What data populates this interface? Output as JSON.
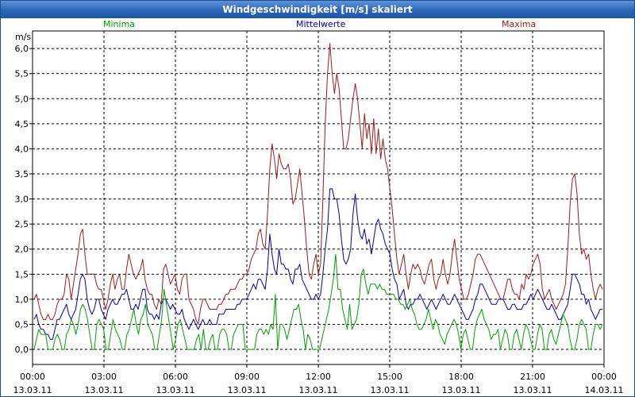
{
  "window": {
    "title": "Windgeschwindigkeit [m/s] skaliert"
  },
  "chart_data": {
    "type": "line",
    "title": "Windgeschwindigkeit [m/s] skaliert",
    "ylabel": "m/s",
    "ylim": [
      -0.3,
      6.35
    ],
    "xlim_hours": [
      0,
      72
    ],
    "grid": true,
    "y_ticks": [
      "0,0",
      "0,5",
      "1,0",
      "1,5",
      "2,0",
      "2,5",
      "3,0",
      "3,5",
      "4,0",
      "4,5",
      "5,0",
      "5,5",
      "6,0"
    ],
    "x_ticks": [
      {
        "time": "00:00",
        "date": "13.03.11"
      },
      {
        "time": "03:00",
        "date": "13.03.11"
      },
      {
        "time": "06:00",
        "date": "13.03.11"
      },
      {
        "time": "09:00",
        "date": "13.03.11"
      },
      {
        "time": "12:00",
        "date": "13.03.11"
      },
      {
        "time": "15:00",
        "date": "13.03.11"
      },
      {
        "time": "18:00",
        "date": "13.03.11"
      },
      {
        "time": "21:00",
        "date": "13.03.11"
      },
      {
        "time": "00:00",
        "date": "14.03.11"
      }
    ],
    "series": [
      {
        "name": "Maxima",
        "color": "#9b1b1b",
        "values": [
          1.0,
          1.1,
          0.9,
          0.7,
          0.6,
          0.6,
          0.7,
          0.6,
          0.6,
          0.7,
          0.9,
          1.0,
          1.0,
          1.1,
          1.5,
          1.4,
          1.0,
          1.3,
          1.6,
          1.9,
          2.3,
          2.4,
          1.9,
          1.5,
          1.5,
          1.5,
          1.5,
          1.3,
          1.2,
          1.2,
          1.0,
          0.8,
          1.0,
          1.3,
          1.5,
          1.2,
          1.4,
          1.5,
          1.2,
          1.2,
          1.6,
          1.9,
          1.7,
          1.5,
          1.4,
          1.5,
          1.6,
          1.8,
          1.4,
          1.2,
          1.1,
          1.1,
          0.9,
          0.8,
          1.0,
          0.9,
          1.6,
          1.7,
          1.5,
          1.3,
          1.4,
          1.5,
          1.2,
          1.1,
          1.4,
          1.5,
          1.5,
          1.0,
          0.9,
          0.8,
          0.6,
          0.5,
          0.8,
          1.0,
          1.0,
          0.9,
          0.8,
          0.8,
          0.8,
          0.8,
          0.9,
          0.9,
          1.0,
          1.1,
          1.1,
          1.2,
          1.2,
          1.2,
          1.3,
          1.4,
          1.4,
          1.5,
          1.5,
          1.6,
          1.8,
          1.9,
          2.0,
          2.3,
          2.4,
          2.1,
          2.0,
          2.7,
          3.6,
          4.1,
          3.8,
          3.4,
          3.9,
          3.7,
          3.6,
          3.6,
          3.7,
          3.4,
          2.9,
          3.0,
          3.3,
          3.6,
          3.1,
          2.6,
          2.0,
          1.5,
          1.4,
          1.7,
          1.9,
          1.5,
          1.7,
          3.0,
          4.5,
          5.5,
          6.1,
          5.5,
          5.1,
          5.5,
          5.2,
          4.6,
          4.0,
          4.0,
          4.2,
          4.6,
          5.0,
          5.3,
          5.0,
          4.5,
          4.0,
          4.7,
          4.2,
          4.5,
          3.9,
          4.6,
          3.9,
          4.4,
          3.8,
          4.2,
          3.8,
          3.6,
          3.2,
          2.8,
          2.3,
          1.8,
          1.5,
          1.7,
          1.9,
          1.5,
          1.2,
          1.5,
          1.7,
          1.6,
          1.7,
          1.6,
          1.4,
          1.3,
          1.5,
          1.7,
          1.8,
          1.4,
          1.2,
          1.4,
          1.5,
          1.8,
          1.5,
          1.3,
          1.5,
          1.9,
          2.2,
          1.8,
          1.4,
          1.2,
          1.0,
          1.0,
          1.1,
          1.3,
          1.5,
          1.8,
          1.9,
          1.9,
          1.8,
          1.7,
          1.6,
          1.5,
          1.4,
          1.3,
          1.2,
          1.1,
          1.0,
          1.0,
          1.2,
          1.4,
          1.4,
          1.2,
          1.1,
          1.1,
          1.0,
          1.3,
          1.2,
          1.5,
          1.4,
          1.5,
          1.7,
          1.8,
          1.9,
          1.7,
          1.2,
          1.0,
          1.1,
          1.2,
          1.0,
          0.9,
          0.8,
          0.9,
          1.0,
          1.1,
          1.3,
          2.0,
          2.9,
          3.4,
          3.5,
          3.1,
          2.3,
          1.9,
          2.0,
          1.8,
          1.9,
          1.5,
          1.2,
          1.0,
          1.2,
          1.3,
          1.2
        ]
      },
      {
        "name": "Mittelwerte",
        "color": "#00009c",
        "values": [
          0.6,
          0.7,
          0.5,
          0.4,
          0.4,
          0.3,
          0.3,
          0.2,
          0.2,
          0.4,
          0.6,
          0.6,
          0.7,
          0.8,
          0.9,
          0.7,
          0.6,
          0.7,
          0.8,
          1.1,
          1.4,
          1.5,
          1.4,
          1.0,
          0.8,
          0.7,
          0.8,
          1.0,
          1.0,
          0.8,
          0.7,
          0.6,
          0.8,
          0.9,
          1.0,
          0.9,
          0.9,
          1.0,
          1.1,
          1.1,
          1.2,
          1.0,
          0.8,
          0.8,
          0.9,
          0.8,
          1.0,
          1.2,
          1.2,
          0.8,
          0.7,
          0.7,
          0.6,
          0.7,
          0.6,
          0.9,
          1.0,
          1.0,
          0.9,
          0.8,
          0.9,
          0.8,
          0.7,
          0.7,
          0.8,
          0.6,
          0.5,
          0.4,
          0.5,
          0.6,
          0.5,
          0.4,
          0.5,
          0.6,
          0.5,
          0.5,
          0.6,
          0.5,
          0.5,
          0.5,
          0.7,
          0.7,
          0.7,
          0.8,
          0.8,
          0.8,
          0.8,
          0.8,
          0.9,
          0.9,
          1.0,
          1.0,
          1.0,
          1.1,
          1.2,
          1.3,
          1.2,
          1.4,
          1.4,
          1.3,
          1.2,
          1.6,
          2.3,
          1.9,
          1.6,
          1.5,
          2.0,
          1.7,
          1.7,
          1.6,
          1.6,
          1.4,
          1.3,
          1.6,
          1.6,
          1.7,
          1.4,
          1.3,
          1.2,
          1.1,
          1.0,
          1.0,
          1.1,
          1.0,
          1.1,
          1.5,
          2.0,
          2.4,
          3.2,
          3.2,
          3.0,
          3.0,
          2.7,
          2.2,
          1.8,
          1.7,
          1.8,
          2.0,
          2.7,
          3.1,
          2.6,
          2.3,
          2.2,
          2.4,
          2.1,
          2.2,
          1.9,
          2.2,
          2.5,
          2.6,
          2.4,
          2.3,
          2.1,
          2.0,
          1.9,
          1.6,
          1.4,
          1.3,
          1.0,
          1.1,
          1.2,
          0.9,
          0.8,
          0.9,
          0.9,
          1.0,
          1.0,
          1.1,
          1.0,
          0.9,
          0.8,
          0.9,
          1.0,
          0.9,
          0.8,
          0.9,
          1.0,
          1.1,
          1.0,
          0.9,
          0.9,
          1.0,
          1.1,
          1.0,
          0.9,
          0.8,
          0.7,
          0.6,
          0.6,
          0.7,
          0.8,
          1.0,
          1.1,
          1.3,
          1.3,
          1.2,
          1.1,
          1.0,
          0.9,
          0.9,
          0.9,
          1.0,
          1.0,
          1.0,
          0.9,
          0.8,
          0.8,
          0.9,
          0.9,
          0.8,
          0.8,
          0.8,
          0.9,
          0.9,
          1.0,
          1.1,
          1.0,
          1.1,
          1.2,
          1.1,
          1.0,
          0.9,
          0.8,
          0.8,
          0.9,
          0.8,
          0.7,
          0.6,
          0.6,
          0.7,
          0.8,
          0.9,
          1.2,
          1.5,
          1.5,
          1.4,
          1.3,
          1.1,
          1.1,
          0.9,
          1.0,
          0.8,
          0.7,
          0.6,
          0.7,
          0.8,
          0.8
        ]
      },
      {
        "name": "Minima",
        "color": "#00a000",
        "values": [
          0.0,
          0.2,
          0.4,
          0.3,
          0.3,
          0.3,
          0.0,
          0.0,
          0.0,
          0.2,
          0.3,
          0.2,
          0.0,
          0.0,
          0.3,
          0.4,
          0.6,
          0.5,
          0.3,
          0.5,
          0.8,
          0.9,
          0.8,
          0.6,
          0.3,
          0.0,
          0.0,
          0.5,
          0.6,
          0.5,
          0.4,
          0.0,
          0.0,
          0.3,
          0.6,
          0.4,
          0.3,
          0.2,
          0.0,
          0.0,
          0.3,
          0.4,
          0.6,
          0.8,
          0.5,
          0.3,
          0.6,
          0.7,
          0.9,
          0.5,
          0.4,
          0.3,
          0.0,
          0.0,
          0.3,
          0.6,
          1.2,
          0.9,
          0.6,
          0.3,
          0.0,
          0.2,
          0.5,
          0.6,
          0.4,
          0.2,
          0.0,
          0.0,
          0.0,
          0.0,
          0.2,
          0.3,
          0.0,
          0.4,
          0.0,
          0.0,
          0.2,
          0.3,
          0.0,
          0.0,
          0.3,
          0.4,
          0.4,
          0.3,
          0.0,
          0.0,
          0.3,
          0.4,
          0.5,
          0.5,
          0.5,
          0.0,
          0.0,
          0.0,
          0.0,
          0.0,
          0.3,
          0.4,
          0.4,
          0.3,
          0.4,
          0.3,
          0.5,
          0.4,
          1.1,
          0.0,
          0.5,
          0.5,
          0.4,
          0.2,
          0.4,
          0.6,
          0.8,
          0.8,
          0.9,
          0.6,
          0.4,
          0.0,
          0.3,
          0.2,
          0.0,
          0.0,
          0.0,
          0.0,
          0.2,
          0.4,
          0.6,
          0.8,
          1.1,
          1.4,
          1.9,
          1.2,
          1.2,
          0.8,
          0.6,
          0.4,
          0.9,
          0.4,
          0.5,
          0.6,
          0.9,
          1.5,
          1.6,
          1.3,
          1.1,
          1.3,
          1.3,
          1.3,
          1.2,
          1.3,
          1.2,
          1.2,
          1.1,
          1.1,
          1.1,
          1.1,
          1.0,
          1.0,
          0.9,
          0.9,
          0.8,
          0.9,
          1.0,
          0.8,
          0.7,
          0.5,
          0.4,
          0.4,
          0.5,
          0.6,
          0.8,
          0.6,
          0.4,
          0.6,
          0.5,
          0.3,
          0.2,
          0.1,
          0.3,
          0.4,
          0.5,
          0.6,
          0.5,
          0.3,
          0.0,
          0.3,
          0.4,
          0.2,
          0.0,
          0.0,
          0.4,
          0.6,
          0.7,
          0.8,
          0.6,
          0.5,
          0.4,
          0.2,
          0.3,
          0.3,
          0.4,
          0.0,
          0.2,
          0.4,
          0.3,
          0.0,
          0.0,
          0.3,
          0.4,
          0.2,
          0.0,
          0.3,
          0.5,
          0.4,
          0.2,
          0.0,
          0.0,
          0.3,
          0.5,
          0.4,
          0.0,
          0.0,
          0.3,
          0.4,
          0.2,
          0.1,
          0.3,
          0.5,
          0.7,
          0.6,
          0.5,
          0.2,
          0.0,
          0.0,
          0.2,
          0.5,
          0.6,
          0.5,
          0.4,
          0.0,
          0.0,
          0.3,
          0.5,
          0.5,
          0.4,
          0.5
        ]
      }
    ]
  }
}
